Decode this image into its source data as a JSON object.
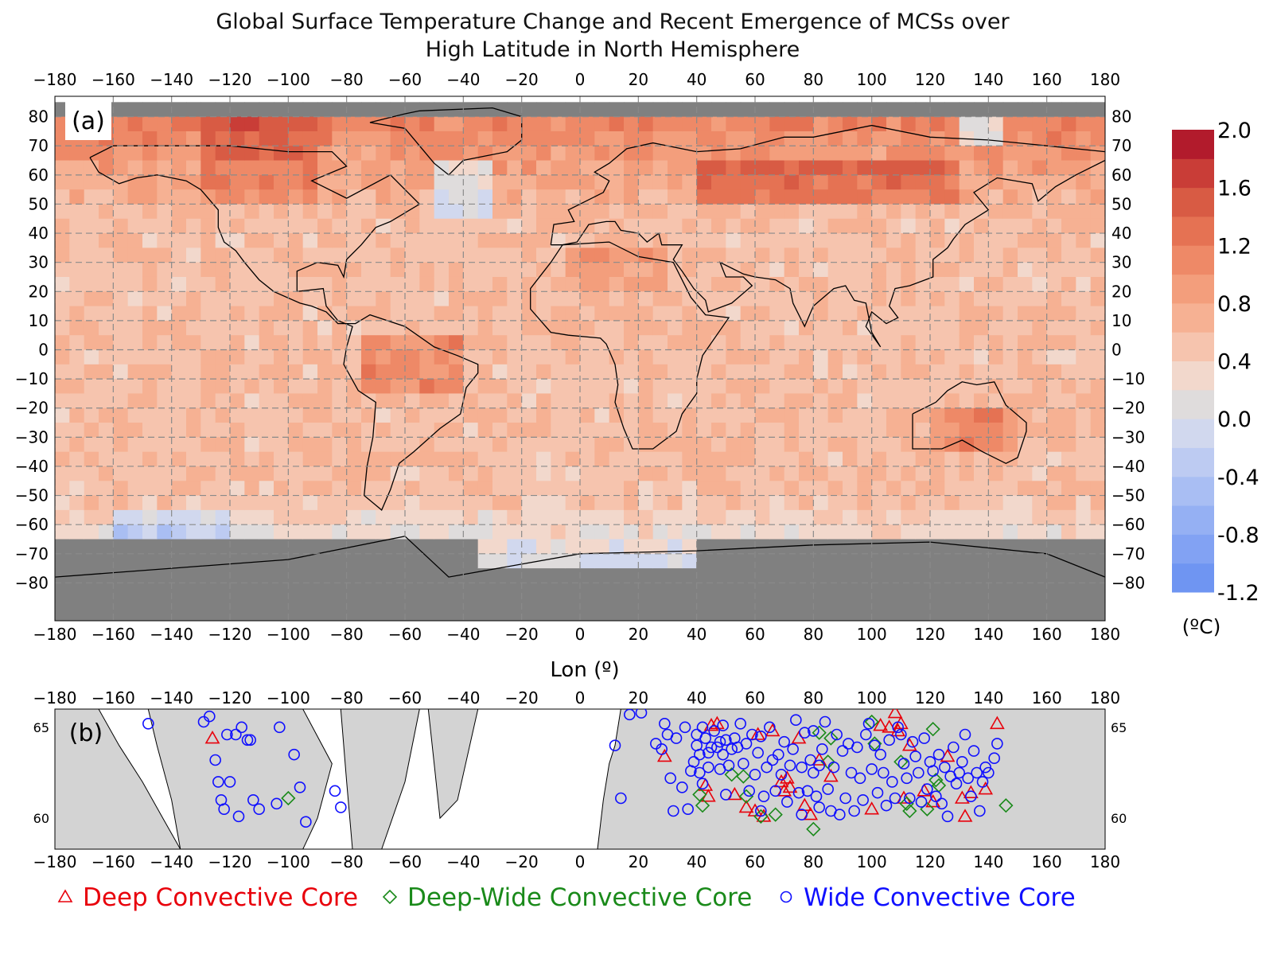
{
  "figure": {
    "title_line1": "Global Surface Temperature Change and Recent Emergence of MCSs over",
    "title_line2": "High Latitude in North Hemisphere"
  },
  "panel_a": {
    "label": "(a)",
    "xlabel": "Lon (º)",
    "x_ticks": [
      -180,
      -160,
      -140,
      -120,
      -100,
      -80,
      -60,
      -40,
      -20,
      0,
      20,
      40,
      60,
      80,
      100,
      120,
      140,
      160,
      180
    ],
    "y_ticks": [
      80,
      70,
      60,
      50,
      40,
      30,
      20,
      10,
      0,
      -10,
      -20,
      -30,
      -40,
      -50,
      -60,
      -70,
      -80
    ],
    "colorbar": {
      "ticks": [
        "2.0",
        "1.6",
        "1.2",
        "0.8",
        "0.4",
        "0.0",
        "-0.4",
        "-0.8",
        "-1.2"
      ],
      "unit": "(ºC)",
      "range": [
        -1.2,
        2.0
      ],
      "step": 0.2,
      "colors": [
        "#6f95f2",
        "#82a2f3",
        "#95b0f3",
        "#a9bef3",
        "#bdcbf2",
        "#d1d8ee",
        "#dfdcdc",
        "#f2d8cc",
        "#f6c4ae",
        "#f6b193",
        "#f39e7c",
        "#ee8967",
        "#e57253",
        "#d85b44",
        "#c93d37",
        "#b21b2c"
      ]
    },
    "land_mask_color": "#808080"
  },
  "panel_b": {
    "label": "(b)",
    "x_ticks": [
      -180,
      -160,
      -140,
      -120,
      -100,
      -80,
      -60,
      -40,
      -20,
      0,
      20,
      40,
      60,
      80,
      100,
      120,
      140,
      160,
      180
    ],
    "y_ticks": [
      65,
      60
    ],
    "land_color": "#d3d3d3"
  },
  "chart_data": {
    "type": "scatter",
    "series": [
      {
        "name": "Deep Convective Core",
        "color": "#e8000b",
        "marker": "triangle",
        "points": [
          [
            -126,
            64.4
          ],
          [
            29,
            63.4
          ],
          [
            43,
            61.8
          ],
          [
            44,
            61.2
          ],
          [
            45,
            65.1
          ],
          [
            47,
            65.2
          ],
          [
            53,
            61.3
          ],
          [
            57,
            60.6
          ],
          [
            60,
            60.4
          ],
          [
            61,
            64.6
          ],
          [
            63,
            60.1
          ],
          [
            66,
            64.8
          ],
          [
            69,
            62.0
          ],
          [
            70,
            61.5
          ],
          [
            71,
            62.2
          ],
          [
            72,
            61.7
          ],
          [
            75,
            64.4
          ],
          [
            77,
            60.7
          ],
          [
            79,
            60.2
          ],
          [
            82,
            63.2
          ],
          [
            86,
            62.3
          ],
          [
            100,
            60.5
          ],
          [
            103,
            65.1
          ],
          [
            106,
            65.0
          ],
          [
            108,
            65.8
          ],
          [
            109,
            64.8
          ],
          [
            110,
            65.2
          ],
          [
            111,
            61.1
          ],
          [
            113,
            64.0
          ],
          [
            118,
            61.5
          ],
          [
            121,
            60.9
          ],
          [
            126,
            63.4
          ],
          [
            131,
            61.1
          ],
          [
            132,
            60.1
          ],
          [
            134,
            61.4
          ],
          [
            139,
            61.6
          ],
          [
            143,
            65.2
          ]
        ]
      },
      {
        "name": "Deep-Wide Convective Core",
        "color": "#1a8a1a",
        "marker": "diamond",
        "points": [
          [
            -100,
            61.1
          ],
          [
            41,
            61.3
          ],
          [
            42,
            60.7
          ],
          [
            52,
            62.4
          ],
          [
            56,
            62.3
          ],
          [
            57,
            61.2
          ],
          [
            62,
            60.1
          ],
          [
            67,
            60.2
          ],
          [
            80,
            59.4
          ],
          [
            82,
            64.7
          ],
          [
            85,
            63.1
          ],
          [
            86,
            64.4
          ],
          [
            100,
            65.3
          ],
          [
            101,
            64.1
          ],
          [
            110,
            63.1
          ],
          [
            112,
            60.8
          ],
          [
            113,
            60.4
          ],
          [
            119,
            60.5
          ],
          [
            121,
            64.9
          ],
          [
            122,
            62.1
          ],
          [
            123,
            61.8
          ],
          [
            146,
            60.7
          ]
        ]
      },
      {
        "name": "Wide Convective Core",
        "color": "#1010ff",
        "marker": "circle",
        "points": [
          [
            -148,
            65.2
          ],
          [
            -129,
            65.3
          ],
          [
            -127,
            65.6
          ],
          [
            -125,
            63.2
          ],
          [
            -124,
            62.0
          ],
          [
            -123,
            61.0
          ],
          [
            -122,
            60.5
          ],
          [
            -121,
            64.6
          ],
          [
            -120,
            62.0
          ],
          [
            -118,
            64.6
          ],
          [
            -117,
            60.1
          ],
          [
            -116,
            65.0
          ],
          [
            -114,
            64.3
          ],
          [
            -113,
            64.3
          ],
          [
            -112,
            61.0
          ],
          [
            -110,
            60.5
          ],
          [
            -104,
            60.8
          ],
          [
            -103,
            65.0
          ],
          [
            -98,
            63.5
          ],
          [
            -96,
            61.7
          ],
          [
            -94,
            59.8
          ],
          [
            -84,
            61.5
          ],
          [
            -82,
            60.6
          ],
          [
            12,
            64.0
          ],
          [
            14,
            61.1
          ],
          [
            17,
            65.7
          ],
          [
            21,
            65.8
          ],
          [
            26,
            64.1
          ],
          [
            28,
            63.8
          ],
          [
            29,
            65.2
          ],
          [
            30,
            64.6
          ],
          [
            31,
            62.2
          ],
          [
            32,
            60.4
          ],
          [
            33,
            64.4
          ],
          [
            35,
            61.7
          ],
          [
            36,
            65.0
          ],
          [
            37,
            60.5
          ],
          [
            38,
            62.6
          ],
          [
            39,
            63.1
          ],
          [
            40,
            64.0
          ],
          [
            40,
            64.6
          ],
          [
            41,
            63.5
          ],
          [
            41,
            62.5
          ],
          [
            42,
            61.9
          ],
          [
            42,
            65.0
          ],
          [
            43,
            64.4
          ],
          [
            44,
            63.6
          ],
          [
            44,
            62.8
          ],
          [
            45,
            63.9
          ],
          [
            46,
            64.8
          ],
          [
            47,
            63.9
          ],
          [
            48,
            62.7
          ],
          [
            48,
            64.2
          ],
          [
            49,
            63.5
          ],
          [
            49,
            65.1
          ],
          [
            50,
            64.3
          ],
          [
            50,
            61.3
          ],
          [
            51,
            62.9
          ],
          [
            52,
            63.8
          ],
          [
            53,
            64.4
          ],
          [
            54,
            63.9
          ],
          [
            55,
            65.2
          ],
          [
            56,
            63.0
          ],
          [
            57,
            64.1
          ],
          [
            58,
            61.5
          ],
          [
            59,
            64.6
          ],
          [
            60,
            62.4
          ],
          [
            61,
            63.6
          ],
          [
            62,
            60.4
          ],
          [
            62,
            64.5
          ],
          [
            63,
            61.2
          ],
          [
            64,
            62.8
          ],
          [
            65,
            65.0
          ],
          [
            66,
            63.2
          ],
          [
            67,
            61.5
          ],
          [
            68,
            63.5
          ],
          [
            69,
            62.4
          ],
          [
            70,
            64.2
          ],
          [
            71,
            60.9
          ],
          [
            72,
            62.9
          ],
          [
            73,
            63.8
          ],
          [
            74,
            65.4
          ],
          [
            75,
            61.4
          ],
          [
            76,
            60.2
          ],
          [
            76,
            62.8
          ],
          [
            77,
            64.7
          ],
          [
            78,
            61.5
          ],
          [
            79,
            63.2
          ],
          [
            80,
            62.5
          ],
          [
            80,
            64.8
          ],
          [
            81,
            61.2
          ],
          [
            82,
            60.6
          ],
          [
            82,
            62.9
          ],
          [
            83,
            63.8
          ],
          [
            84,
            65.3
          ],
          [
            85,
            61.6
          ],
          [
            86,
            60.4
          ],
          [
            87,
            62.8
          ],
          [
            88,
            64.6
          ],
          [
            89,
            60.2
          ],
          [
            90,
            63.7
          ],
          [
            91,
            61.1
          ],
          [
            92,
            64.1
          ],
          [
            93,
            62.5
          ],
          [
            94,
            60.4
          ],
          [
            95,
            63.9
          ],
          [
            96,
            62.2
          ],
          [
            97,
            61.0
          ],
          [
            98,
            64.6
          ],
          [
            99,
            65.2
          ],
          [
            100,
            62.7
          ],
          [
            101,
            64.0
          ],
          [
            102,
            61.4
          ],
          [
            103,
            63.5
          ],
          [
            104,
            62.5
          ],
          [
            105,
            60.7
          ],
          [
            106,
            64.3
          ],
          [
            107,
            62.0
          ],
          [
            108,
            61.1
          ],
          [
            109,
            65.0
          ],
          [
            110,
            64.6
          ],
          [
            111,
            63.0
          ],
          [
            112,
            62.2
          ],
          [
            113,
            61.1
          ],
          [
            114,
            64.2
          ],
          [
            115,
            63.4
          ],
          [
            116,
            62.5
          ],
          [
            117,
            60.9
          ],
          [
            118,
            64.4
          ],
          [
            119,
            61.6
          ],
          [
            120,
            63.1
          ],
          [
            121,
            62.6
          ],
          [
            122,
            61.2
          ],
          [
            123,
            63.5
          ],
          [
            124,
            60.8
          ],
          [
            125,
            62.8
          ],
          [
            126,
            60.1
          ],
          [
            127,
            62.3
          ],
          [
            128,
            63.9
          ],
          [
            129,
            61.9
          ],
          [
            130,
            62.5
          ],
          [
            131,
            63.1
          ],
          [
            132,
            64.6
          ],
          [
            133,
            62.2
          ],
          [
            134,
            61.2
          ],
          [
            135,
            63.7
          ],
          [
            136,
            62.5
          ],
          [
            137,
            60.4
          ],
          [
            138,
            62.0
          ],
          [
            139,
            62.8
          ],
          [
            140,
            62.5
          ],
          [
            142,
            63.3
          ],
          [
            143,
            64.1
          ]
        ]
      }
    ]
  }
}
